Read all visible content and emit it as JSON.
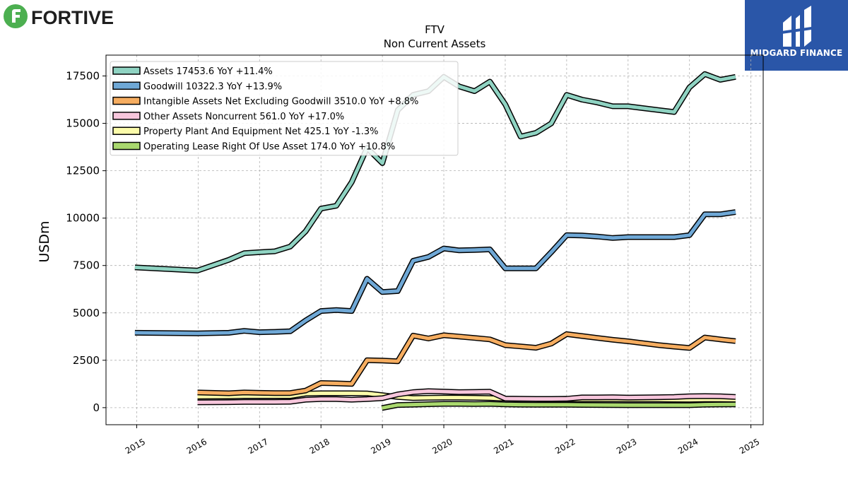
{
  "brand": {
    "logo_text": "FORTIVE",
    "logo_color": "#4caf50",
    "partner_name": "MIDGARD FINANCE",
    "partner_color": "#2a56a8"
  },
  "chart_data": {
    "type": "line",
    "title": "FTV",
    "subtitle": "Non Current  Assets",
    "ylabel": "USDm",
    "xlabel": "",
    "xlim": [
      2014.5,
      2025.2
    ],
    "ylim": [
      -900,
      18600
    ],
    "grid": true,
    "legend_position": "top-left",
    "x_ticks": [
      "2015",
      "2016",
      "2017",
      "2018",
      "2019",
      "2020",
      "2021",
      "2022",
      "2023",
      "2024",
      "2025"
    ],
    "y_ticks": [
      "0",
      "2500",
      "5000",
      "7500",
      "10000",
      "12500",
      "15000",
      "17500"
    ],
    "series": [
      {
        "name": "Assets",
        "legend": "Assets  17453.6 YoY +11.4%",
        "color": "#8fd3c2",
        "points": [
          [
            2014.97,
            7400
          ],
          [
            2015.99,
            7230
          ],
          [
            2016.5,
            7800
          ],
          [
            2016.75,
            8150
          ],
          [
            2017.0,
            8200
          ],
          [
            2017.25,
            8250
          ],
          [
            2017.5,
            8500
          ],
          [
            2017.75,
            9300
          ],
          [
            2018.0,
            10500
          ],
          [
            2018.25,
            10650
          ],
          [
            2018.5,
            11900
          ],
          [
            2018.75,
            13700
          ],
          [
            2019.0,
            12900
          ],
          [
            2019.25,
            15700
          ],
          [
            2019.5,
            16500
          ],
          [
            2019.75,
            16700
          ],
          [
            2020.0,
            17450
          ],
          [
            2020.25,
            16950
          ],
          [
            2020.5,
            16700
          ],
          [
            2020.75,
            17200
          ],
          [
            2021.0,
            16000
          ],
          [
            2021.25,
            14300
          ],
          [
            2021.5,
            14500
          ],
          [
            2021.75,
            15000
          ],
          [
            2022.0,
            16500
          ],
          [
            2022.25,
            16250
          ],
          [
            2022.5,
            16100
          ],
          [
            2022.75,
            15900
          ],
          [
            2023.0,
            15900
          ],
          [
            2023.25,
            15800
          ],
          [
            2023.5,
            15700
          ],
          [
            2023.75,
            15600
          ],
          [
            2024.0,
            16900
          ],
          [
            2024.25,
            17600
          ],
          [
            2024.5,
            17300
          ],
          [
            2024.75,
            17450
          ]
        ]
      },
      {
        "name": "Goodwill",
        "legend": "Goodwill  10322.3 YoY +13.9%",
        "color": "#6fa8d6",
        "points": [
          [
            2014.97,
            3950
          ],
          [
            2015.99,
            3920
          ],
          [
            2016.5,
            3950
          ],
          [
            2016.75,
            4050
          ],
          [
            2017.0,
            3980
          ],
          [
            2017.25,
            4000
          ],
          [
            2017.5,
            4030
          ],
          [
            2017.75,
            4600
          ],
          [
            2018.0,
            5100
          ],
          [
            2018.25,
            5150
          ],
          [
            2018.5,
            5100
          ],
          [
            2018.75,
            6800
          ],
          [
            2019.0,
            6100
          ],
          [
            2019.25,
            6150
          ],
          [
            2019.5,
            7750
          ],
          [
            2019.75,
            7950
          ],
          [
            2020.0,
            8400
          ],
          [
            2020.25,
            8300
          ],
          [
            2020.5,
            8320
          ],
          [
            2020.75,
            8350
          ],
          [
            2021.0,
            7350
          ],
          [
            2021.25,
            7350
          ],
          [
            2021.5,
            7350
          ],
          [
            2021.75,
            8200
          ],
          [
            2022.0,
            9100
          ],
          [
            2022.25,
            9080
          ],
          [
            2022.5,
            9030
          ],
          [
            2022.75,
            8950
          ],
          [
            2023.0,
            9000
          ],
          [
            2023.25,
            9000
          ],
          [
            2023.5,
            9000
          ],
          [
            2023.75,
            9000
          ],
          [
            2024.0,
            9100
          ],
          [
            2024.25,
            10200
          ],
          [
            2024.5,
            10200
          ],
          [
            2024.75,
            10320
          ]
        ]
      },
      {
        "name": "Intangible Assets Net Excluding Goodwill",
        "legend": "Intangible Assets Net Excluding Goodwill  3510.0 YoY +8.8%",
        "color": "#f6ad60",
        "points": [
          [
            2015.99,
            800
          ],
          [
            2016.5,
            760
          ],
          [
            2016.75,
            800
          ],
          [
            2017.0,
            780
          ],
          [
            2017.25,
            770
          ],
          [
            2017.5,
            770
          ],
          [
            2017.75,
            900
          ],
          [
            2018.0,
            1300
          ],
          [
            2018.25,
            1280
          ],
          [
            2018.5,
            1250
          ],
          [
            2018.75,
            2500
          ],
          [
            2019.0,
            2480
          ],
          [
            2019.25,
            2450
          ],
          [
            2019.5,
            3800
          ],
          [
            2019.75,
            3650
          ],
          [
            2020.0,
            3820
          ],
          [
            2020.25,
            3750
          ],
          [
            2020.5,
            3680
          ],
          [
            2020.75,
            3600
          ],
          [
            2021.0,
            3300
          ],
          [
            2021.25,
            3230
          ],
          [
            2021.5,
            3160
          ],
          [
            2021.75,
            3380
          ],
          [
            2022.0,
            3880
          ],
          [
            2022.25,
            3780
          ],
          [
            2022.5,
            3680
          ],
          [
            2022.75,
            3580
          ],
          [
            2023.0,
            3500
          ],
          [
            2023.25,
            3400
          ],
          [
            2023.5,
            3300
          ],
          [
            2023.75,
            3220
          ],
          [
            2024.0,
            3150
          ],
          [
            2024.25,
            3700
          ],
          [
            2024.5,
            3600
          ],
          [
            2024.75,
            3510
          ]
        ]
      },
      {
        "name": "Other Assets Noncurrent",
        "legend": "Other Assets Noncurrent  561.0 YoY +17.0%",
        "color": "#f7c6dc",
        "points": [
          [
            2015.99,
            280
          ],
          [
            2016.5,
            290
          ],
          [
            2016.75,
            300
          ],
          [
            2017.0,
            300
          ],
          [
            2017.25,
            300
          ],
          [
            2017.5,
            310
          ],
          [
            2017.75,
            420
          ],
          [
            2018.0,
            450
          ],
          [
            2018.25,
            450
          ],
          [
            2018.5,
            420
          ],
          [
            2018.75,
            450
          ],
          [
            2019.0,
            500
          ],
          [
            2019.25,
            700
          ],
          [
            2019.5,
            820
          ],
          [
            2019.75,
            870
          ],
          [
            2020.0,
            850
          ],
          [
            2020.25,
            820
          ],
          [
            2020.5,
            830
          ],
          [
            2020.75,
            840
          ],
          [
            2021.0,
            480
          ],
          [
            2021.25,
            470
          ],
          [
            2021.5,
            460
          ],
          [
            2021.75,
            460
          ],
          [
            2022.0,
            470
          ],
          [
            2022.25,
            540
          ],
          [
            2022.5,
            540
          ],
          [
            2022.75,
            550
          ],
          [
            2023.0,
            530
          ],
          [
            2023.25,
            540
          ],
          [
            2023.5,
            550
          ],
          [
            2023.75,
            560
          ],
          [
            2024.0,
            600
          ],
          [
            2024.25,
            610
          ],
          [
            2024.5,
            600
          ],
          [
            2024.75,
            561
          ]
        ]
      },
      {
        "name": "Property Plant And Equipment Net",
        "legend": "Property Plant And Equipment Net  425.1 YoY -1.3%",
        "color": "#fbfbaa",
        "points": [
          [
            2015.99,
            580
          ],
          [
            2016.5,
            590
          ],
          [
            2016.75,
            610
          ],
          [
            2017.0,
            610
          ],
          [
            2017.25,
            610
          ],
          [
            2017.5,
            610
          ],
          [
            2017.75,
            740
          ],
          [
            2018.0,
            760
          ],
          [
            2018.25,
            760
          ],
          [
            2018.5,
            760
          ],
          [
            2018.75,
            750
          ],
          [
            2019.0,
            660
          ],
          [
            2019.25,
            560
          ],
          [
            2019.5,
            510
          ],
          [
            2019.75,
            520
          ],
          [
            2020.0,
            530
          ],
          [
            2020.25,
            530
          ],
          [
            2020.5,
            520
          ],
          [
            2020.75,
            510
          ],
          [
            2021.0,
            470
          ],
          [
            2021.25,
            460
          ],
          [
            2021.5,
            450
          ],
          [
            2021.75,
            440
          ],
          [
            2022.0,
            440
          ],
          [
            2022.25,
            440
          ],
          [
            2022.5,
            440
          ],
          [
            2022.75,
            440
          ],
          [
            2023.0,
            430
          ],
          [
            2023.25,
            430
          ],
          [
            2023.5,
            430
          ],
          [
            2023.75,
            425
          ],
          [
            2024.0,
            420
          ],
          [
            2024.25,
            430
          ],
          [
            2024.5,
            430
          ],
          [
            2024.75,
            425
          ]
        ]
      },
      {
        "name": "Operating Lease Right Of Use Asset",
        "legend": "Operating Lease Right Of Use Asset  174.0 YoY +10.8%",
        "color": "#a9d86e",
        "points": [
          [
            2018.99,
            -20
          ],
          [
            2019.25,
            140
          ],
          [
            2019.5,
            160
          ],
          [
            2019.75,
            180
          ],
          [
            2020.0,
            200
          ],
          [
            2020.25,
            200
          ],
          [
            2020.5,
            190
          ],
          [
            2020.75,
            200
          ],
          [
            2021.0,
            170
          ],
          [
            2021.25,
            160
          ],
          [
            2021.5,
            155
          ],
          [
            2021.75,
            150
          ],
          [
            2022.0,
            150
          ],
          [
            2022.25,
            145
          ],
          [
            2022.5,
            140
          ],
          [
            2022.75,
            135
          ],
          [
            2023.0,
            130
          ],
          [
            2023.25,
            130
          ],
          [
            2023.5,
            130
          ],
          [
            2023.75,
            130
          ],
          [
            2024.0,
            130
          ],
          [
            2024.25,
            160
          ],
          [
            2024.5,
            165
          ],
          [
            2024.75,
            174
          ]
        ]
      }
    ]
  }
}
